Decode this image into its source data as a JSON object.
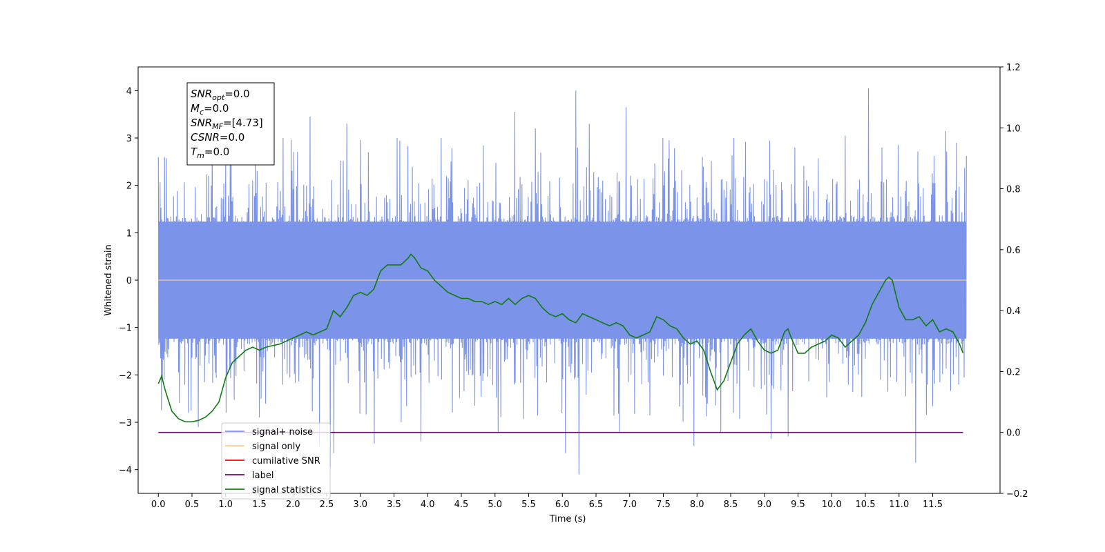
{
  "chart_data": {
    "type": "line",
    "xlabel": "Time (s)",
    "ylabel": "Whitened strain",
    "xlim": [
      -0.3,
      12.5
    ],
    "ylim": [
      -4.5,
      4.5
    ],
    "y2lim": [
      -0.2,
      1.2
    ],
    "x_ticks": [
      0.0,
      0.5,
      1.0,
      1.5,
      2.0,
      2.5,
      3.0,
      3.5,
      4.0,
      4.5,
      5.0,
      5.5,
      6.0,
      6.5,
      7.0,
      7.5,
      8.0,
      8.5,
      9.0,
      9.5,
      10.0,
      10.5,
      11.0,
      11.5
    ],
    "x_tick_labels": [
      "0.0",
      "0.5",
      "1.0",
      "1.5",
      "2.0",
      "2.5",
      "3.0",
      "3.5",
      "4.0",
      "4.5",
      "5.0",
      "5.5",
      "6.0",
      "6.5",
      "7.0",
      "7.5",
      "8.0",
      "8.5",
      "9.0",
      "9.5",
      "10.0",
      "10.5",
      "11.0",
      "11.5"
    ],
    "y_ticks": [
      -4,
      -3,
      -2,
      -1,
      0,
      1,
      2,
      3,
      4
    ],
    "y_tick_labels": [
      "−4",
      "−3",
      "−2",
      "−1",
      "0",
      "1",
      "2",
      "3",
      "4"
    ],
    "y2_ticks": [
      -0.2,
      0.0,
      0.2,
      0.4,
      0.6,
      0.8,
      1.0,
      1.2
    ],
    "y2_tick_labels": [
      "−0.2",
      "0.0",
      "0.2",
      "0.4",
      "0.6",
      "0.8",
      "1.0",
      "1.2"
    ],
    "grid": false,
    "legend_position": "bottom-left",
    "annotation": {
      "lines": [
        {
          "base": "SNR",
          "sub": "opt",
          "value": "=0.0"
        },
        {
          "base": "M",
          "sub": "c",
          "value": "=0.0"
        },
        {
          "base": "SNR",
          "sub": "MF",
          "value": "=[4.73]"
        },
        {
          "base": "CSNR",
          "sub": "",
          "value": "=0.0"
        },
        {
          "base": "T",
          "sub": "m",
          "value": "=0.0"
        }
      ]
    },
    "legend": [
      {
        "label": "signal+ noise",
        "color": "#7b93e8"
      },
      {
        "label": "signal only",
        "color": "#ffcc80"
      },
      {
        "label": "cumilative SNR",
        "color": "#ff0000"
      },
      {
        "label": "label",
        "color": "#6a0a6a"
      },
      {
        "label": "signal statistics",
        "color": "#107c10"
      }
    ],
    "series": [
      {
        "name": "signal+ noise",
        "axis": "left",
        "color": "#7b93e8",
        "x_range": [
          0.0,
          12.0
        ],
        "envelope_upper": 1.3,
        "envelope_lower": -1.3,
        "peaks": [
          {
            "x": 0.0,
            "y": 2.6
          },
          {
            "x": 0.05,
            "y": -2.75
          },
          {
            "x": 0.1,
            "y": 2.6
          },
          {
            "x": 0.45,
            "y": -2.8
          },
          {
            "x": 0.6,
            "y": -3.1
          },
          {
            "x": 0.8,
            "y": 3.3
          },
          {
            "x": 1.0,
            "y": -2.8
          },
          {
            "x": 1.5,
            "y": -2.9
          },
          {
            "x": 1.85,
            "y": 3.0
          },
          {
            "x": 2.25,
            "y": 3.45
          },
          {
            "x": 2.4,
            "y": -3.5
          },
          {
            "x": 2.55,
            "y": -3.95
          },
          {
            "x": 2.6,
            "y": -3.65
          },
          {
            "x": 2.8,
            "y": 3.3
          },
          {
            "x": 3.2,
            "y": -3.45
          },
          {
            "x": 3.55,
            "y": 3.0
          },
          {
            "x": 3.6,
            "y": -3.0
          },
          {
            "x": 3.9,
            "y": -3.4
          },
          {
            "x": 4.2,
            "y": 3.0
          },
          {
            "x": 5.05,
            "y": -3.2
          },
          {
            "x": 5.3,
            "y": 3.55
          },
          {
            "x": 5.6,
            "y": 3.2
          },
          {
            "x": 6.05,
            "y": -3.65
          },
          {
            "x": 6.2,
            "y": 4.0
          },
          {
            "x": 6.25,
            "y": -4.1
          },
          {
            "x": 6.4,
            "y": 3.3
          },
          {
            "x": 6.85,
            "y": -3.2
          },
          {
            "x": 6.95,
            "y": 3.65
          },
          {
            "x": 7.5,
            "y": 3.0
          },
          {
            "x": 7.95,
            "y": -3.5
          },
          {
            "x": 8.35,
            "y": -3.2
          },
          {
            "x": 8.55,
            "y": 3.0
          },
          {
            "x": 9.1,
            "y": -3.35
          },
          {
            "x": 9.35,
            "y": -3.3
          },
          {
            "x": 9.45,
            "y": 2.8
          },
          {
            "x": 10.2,
            "y": 3.05
          },
          {
            "x": 10.55,
            "y": 4.05
          },
          {
            "x": 10.75,
            "y": 2.8
          },
          {
            "x": 11.25,
            "y": -3.85
          },
          {
            "x": 11.7,
            "y": 3.15
          },
          {
            "x": 11.85,
            "y": 2.9
          }
        ]
      },
      {
        "name": "signal only",
        "axis": "left",
        "color": "#ffcc80",
        "x": [
          0.0,
          12.0
        ],
        "y": [
          0.0,
          0.0
        ]
      },
      {
        "name": "label",
        "axis": "right",
        "color": "#6a0a6a",
        "x": [
          0.0,
          11.95
        ],
        "y": [
          0.0,
          0.0
        ]
      },
      {
        "name": "signal statistics",
        "axis": "right",
        "color": "#107c10",
        "x": [
          0.0,
          0.05,
          0.1,
          0.2,
          0.3,
          0.4,
          0.5,
          0.6,
          0.7,
          0.8,
          0.9,
          1.0,
          1.1,
          1.2,
          1.3,
          1.4,
          1.5,
          1.6,
          1.7,
          1.8,
          1.9,
          2.0,
          2.1,
          2.2,
          2.3,
          2.4,
          2.5,
          2.6,
          2.7,
          2.8,
          2.9,
          3.0,
          3.1,
          3.2,
          3.3,
          3.4,
          3.5,
          3.6,
          3.7,
          3.75,
          3.8,
          3.9,
          4.0,
          4.1,
          4.2,
          4.3,
          4.4,
          4.5,
          4.6,
          4.7,
          4.8,
          4.9,
          5.0,
          5.1,
          5.2,
          5.3,
          5.4,
          5.5,
          5.6,
          5.7,
          5.8,
          5.9,
          6.0,
          6.1,
          6.2,
          6.3,
          6.4,
          6.5,
          6.6,
          6.7,
          6.8,
          6.9,
          7.0,
          7.1,
          7.2,
          7.3,
          7.4,
          7.5,
          7.6,
          7.7,
          7.8,
          7.9,
          8.0,
          8.1,
          8.2,
          8.3,
          8.4,
          8.5,
          8.6,
          8.7,
          8.8,
          8.9,
          9.0,
          9.1,
          9.2,
          9.3,
          9.35,
          9.4,
          9.5,
          9.6,
          9.7,
          9.8,
          9.9,
          10.0,
          10.1,
          10.2,
          10.3,
          10.4,
          10.5,
          10.6,
          10.7,
          10.8,
          10.85,
          10.9,
          11.0,
          11.1,
          11.2,
          11.3,
          11.4,
          11.5,
          11.6,
          11.7,
          11.8,
          11.9,
          11.95
        ],
        "y": [
          0.16,
          0.185,
          0.14,
          0.07,
          0.045,
          0.035,
          0.035,
          0.04,
          0.05,
          0.07,
          0.1,
          0.18,
          0.23,
          0.25,
          0.27,
          0.28,
          0.27,
          0.28,
          0.285,
          0.29,
          0.3,
          0.31,
          0.32,
          0.33,
          0.32,
          0.33,
          0.34,
          0.4,
          0.38,
          0.41,
          0.45,
          0.46,
          0.45,
          0.47,
          0.53,
          0.55,
          0.55,
          0.55,
          0.57,
          0.585,
          0.575,
          0.54,
          0.53,
          0.5,
          0.48,
          0.46,
          0.45,
          0.44,
          0.44,
          0.43,
          0.43,
          0.42,
          0.43,
          0.42,
          0.44,
          0.42,
          0.44,
          0.45,
          0.44,
          0.41,
          0.39,
          0.38,
          0.39,
          0.37,
          0.36,
          0.39,
          0.38,
          0.37,
          0.36,
          0.35,
          0.36,
          0.35,
          0.32,
          0.31,
          0.32,
          0.33,
          0.38,
          0.37,
          0.35,
          0.34,
          0.31,
          0.29,
          0.3,
          0.27,
          0.2,
          0.14,
          0.17,
          0.23,
          0.29,
          0.32,
          0.34,
          0.3,
          0.27,
          0.26,
          0.27,
          0.33,
          0.34,
          0.31,
          0.26,
          0.26,
          0.28,
          0.29,
          0.3,
          0.32,
          0.31,
          0.28,
          0.3,
          0.32,
          0.36,
          0.42,
          0.46,
          0.5,
          0.51,
          0.5,
          0.41,
          0.37,
          0.37,
          0.38,
          0.35,
          0.37,
          0.33,
          0.34,
          0.33,
          0.29,
          0.26
        ]
      }
    ]
  }
}
